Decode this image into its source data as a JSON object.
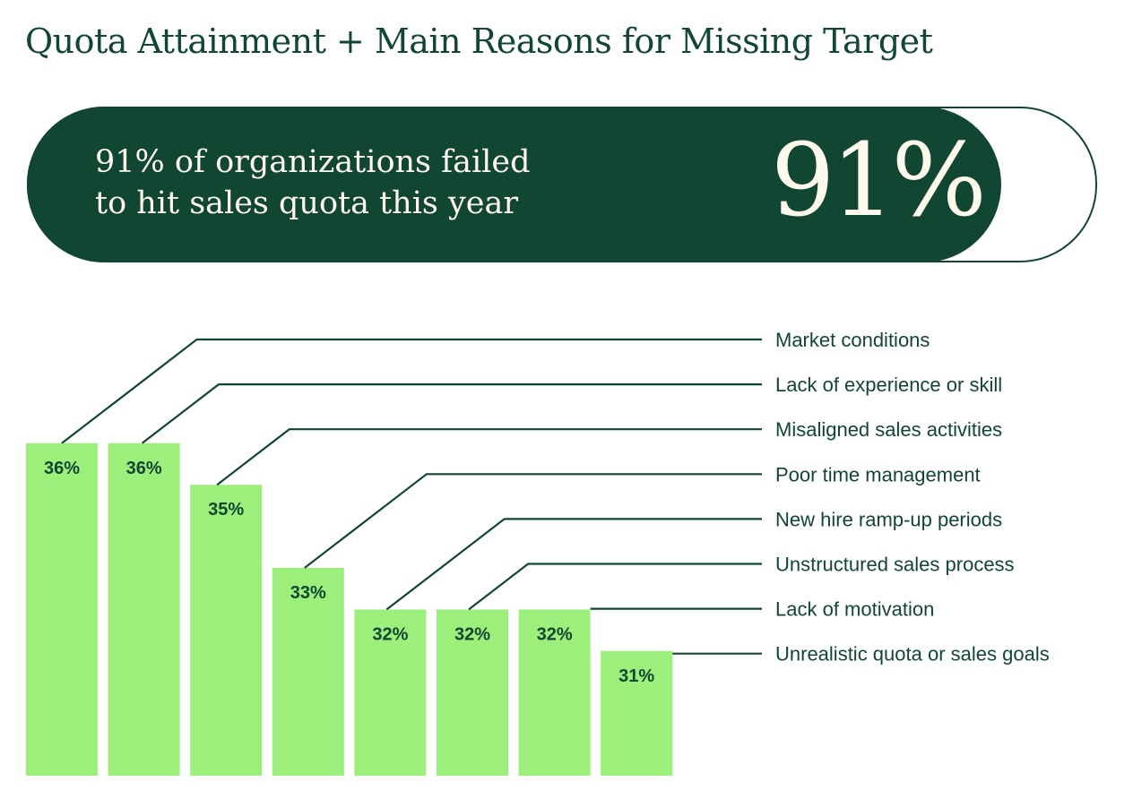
{
  "title": "Quota Attainment + Main Reasons for Missing Target",
  "highlight": {
    "text_line1": "91% of organizations failed",
    "text_line2": "to hit sales quota this year",
    "value": "91%",
    "fill_percent": 91
  },
  "colors": {
    "dark_green": "#114632",
    "bar_green": "#9def7c",
    "text_light": "#fff8ec"
  },
  "chart_data": {
    "type": "bar",
    "categories": [
      "Market conditions",
      "Lack of experience or skill",
      "Misaligned sales activities",
      "Poor time management",
      "New hire ramp-up periods",
      "Unstructured sales process",
      "Lack of motivation",
      "Unrealistic quota or sales goals"
    ],
    "values": [
      36,
      36,
      35,
      33,
      32,
      32,
      32,
      31
    ],
    "value_labels": [
      "36%",
      "36%",
      "35%",
      "33%",
      "32%",
      "32%",
      "32%",
      "31%"
    ],
    "ylim": [
      28,
      36.1
    ],
    "grid": false,
    "legend": "none"
  }
}
